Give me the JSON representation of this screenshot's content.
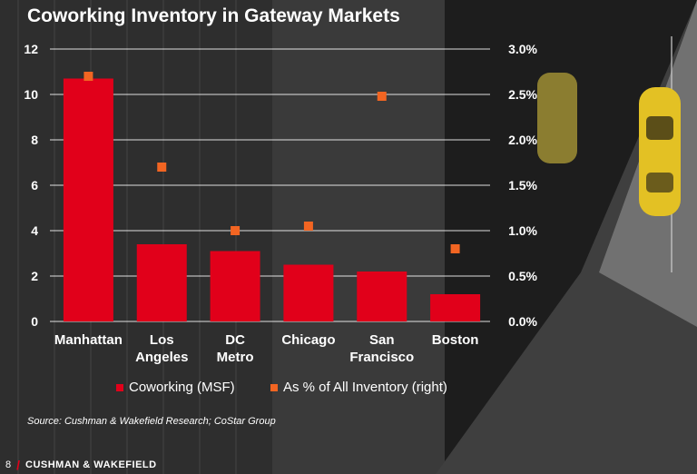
{
  "title": "Coworking Inventory in Gateway Markets",
  "chart_data": {
    "type": "bar",
    "categories": [
      [
        "Manhattan"
      ],
      [
        "Los",
        "Angeles"
      ],
      [
        "DC",
        "Metro"
      ],
      [
        "Chicago"
      ],
      [
        "San",
        "Francisco"
      ],
      [
        "Boston"
      ]
    ],
    "series": [
      {
        "name": "Coworking (MSF)",
        "kind": "bar",
        "axis": "left",
        "color": "#e1001a",
        "values": [
          10.7,
          3.4,
          3.1,
          2.5,
          2.2,
          1.2
        ]
      },
      {
        "name": "As % of All Inventory (right)",
        "kind": "marker",
        "axis": "right",
        "color": "#f26522",
        "values": [
          2.7,
          1.7,
          1.0,
          1.05,
          2.48,
          0.8
        ]
      }
    ],
    "y_left": {
      "ylim": [
        0,
        12
      ],
      "ticks": [
        "0",
        "2",
        "4",
        "6",
        "8",
        "10",
        "12"
      ]
    },
    "y_right": {
      "ylim": [
        0,
        3.0
      ],
      "ticks": [
        "0.0%",
        "0.5%",
        "1.0%",
        "1.5%",
        "2.0%",
        "2.5%",
        "3.0%"
      ]
    },
    "grid": true,
    "legend": "bottom"
  },
  "legend": {
    "bar_label": "Coworking (MSF)",
    "marker_label": "As % of All Inventory (right)"
  },
  "source": "Source: Cushman & Wakefield Research; CoStar Group",
  "footer": {
    "page_number": "8",
    "brand": "CUSHMAN & WAKEFIELD"
  }
}
